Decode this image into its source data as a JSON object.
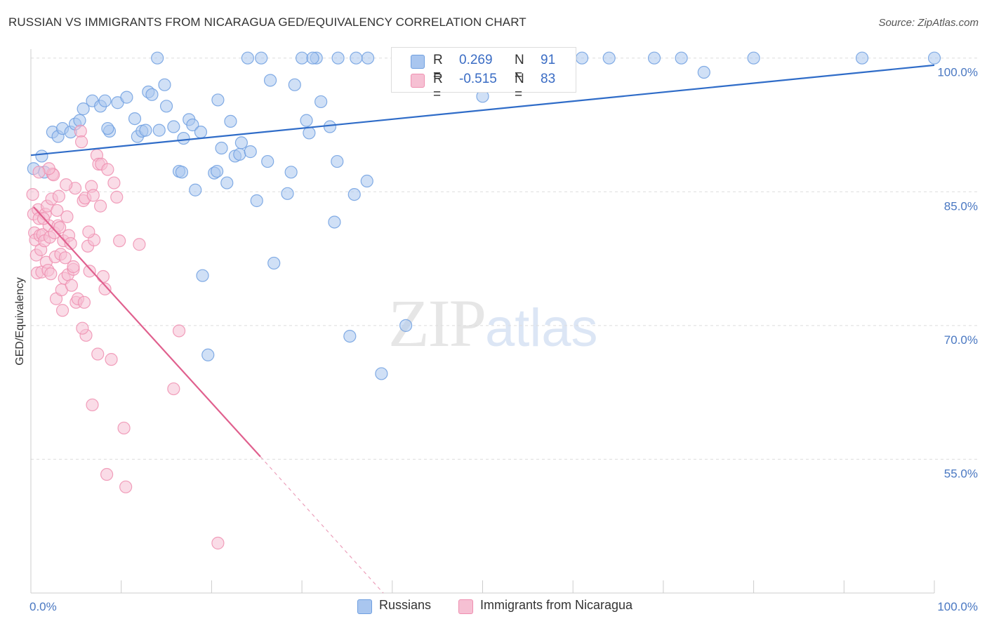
{
  "header": {
    "title": "RUSSIAN VS IMMIGRANTS FROM NICARAGUA GED/EQUIVALENCY CORRELATION CHART",
    "source": "Source: ZipAtlas.com"
  },
  "watermark": {
    "zip": "ZIP",
    "atlas": "atlas"
  },
  "colors": {
    "russians": "#6f9fe0",
    "russians_fill": "#a9c6ef",
    "russians_line": "#2f6cc8",
    "nicaragua": "#ef8fb0",
    "nicaragua_fill": "#f6c0d3",
    "nicaragua_line": "#e0608e",
    "tick_label": "#4a78c2",
    "grid": "#dddddd"
  },
  "legend_top": {
    "rows": [
      {
        "r_label": "R =",
        "r_value": "0.269",
        "n_label": "N =",
        "n_value": "91"
      },
      {
        "r_label": "R =",
        "r_value": "-0.515",
        "n_label": "N =",
        "n_value": "83"
      }
    ]
  },
  "legend_bottom": {
    "items": [
      "Russians",
      "Immigrants from Nicaragua"
    ]
  },
  "chart_data": {
    "type": "scatter",
    "title": "RUSSIAN VS IMMIGRANTS FROM NICARAGUA GED/EQUIVALENCY CORRELATION CHART",
    "xlabel": "",
    "ylabel": "GED/Equivalency",
    "xlim": [
      0,
      100
    ],
    "ylim": [
      40,
      101
    ],
    "x_tick_labels": [
      "0.0%",
      "100.0%"
    ],
    "y_ticks": [
      100,
      85,
      70,
      55
    ],
    "y_tick_labels": [
      "100.0%",
      "85.0%",
      "70.0%",
      "55.0%"
    ],
    "grid": "horizontal dashed",
    "legend_position": "bottom",
    "series": [
      {
        "name": "Russians",
        "r": 0.269,
        "n": 91,
        "trend": {
          "x": [
            0,
            100
          ],
          "y": [
            89.1,
            99.2
          ]
        },
        "points": [
          [
            0.3,
            87.6
          ],
          [
            1.2,
            89.0
          ],
          [
            1.5,
            87.2
          ],
          [
            2.4,
            91.7
          ],
          [
            3.0,
            91.2
          ],
          [
            3.5,
            92.1
          ],
          [
            4.4,
            91.7
          ],
          [
            4.9,
            92.6
          ],
          [
            5.4,
            93.0
          ],
          [
            5.8,
            94.3
          ],
          [
            6.8,
            95.2
          ],
          [
            7.7,
            94.6
          ],
          [
            8.2,
            95.2
          ],
          [
            8.7,
            91.8
          ],
          [
            8.5,
            92.1
          ],
          [
            9.6,
            95.0
          ],
          [
            10.6,
            95.6
          ],
          [
            11.5,
            93.2
          ],
          [
            11.8,
            91.2
          ],
          [
            12.3,
            91.8
          ],
          [
            12.7,
            91.9
          ],
          [
            13.0,
            96.2
          ],
          [
            13.4,
            95.9
          ],
          [
            14.2,
            91.9
          ],
          [
            14.8,
            97.0
          ],
          [
            15.0,
            94.6
          ],
          [
            15.8,
            92.3
          ],
          [
            16.4,
            87.3
          ],
          [
            16.7,
            87.2
          ],
          [
            16.9,
            91.0
          ],
          [
            17.5,
            93.1
          ],
          [
            17.9,
            92.5
          ],
          [
            18.2,
            85.2
          ],
          [
            18.8,
            91.7
          ],
          [
            19.0,
            75.6
          ],
          [
            19.6,
            66.7
          ],
          [
            20.3,
            87.1
          ],
          [
            20.6,
            87.3
          ],
          [
            20.7,
            95.3
          ],
          [
            21.1,
            89.9
          ],
          [
            21.7,
            86.0
          ],
          [
            22.1,
            92.9
          ],
          [
            22.6,
            89.0
          ],
          [
            23.1,
            89.2
          ],
          [
            23.3,
            90.5
          ],
          [
            24.3,
            89.5
          ],
          [
            25.0,
            84.0
          ],
          [
            26.2,
            88.4
          ],
          [
            26.5,
            97.5
          ],
          [
            26.9,
            77.0
          ],
          [
            28.4,
            84.8
          ],
          [
            28.8,
            87.2
          ],
          [
            29.2,
            97.0
          ],
          [
            30.5,
            93.0
          ],
          [
            30.8,
            91.6
          ],
          [
            31.6,
            100.0
          ],
          [
            32.1,
            95.1
          ],
          [
            33.1,
            92.3
          ],
          [
            33.6,
            81.6
          ],
          [
            33.9,
            88.4
          ],
          [
            35.3,
            68.8
          ],
          [
            35.8,
            84.7
          ],
          [
            37.2,
            86.2
          ],
          [
            37.3,
            100.0
          ],
          [
            38.8,
            64.6
          ],
          [
            41.0,
            100.0
          ],
          [
            41.5,
            70.0
          ],
          [
            44.0,
            100.0
          ],
          [
            47.0,
            100.0
          ],
          [
            50.0,
            95.7
          ],
          [
            50.8,
            100.0
          ],
          [
            55.0,
            100.0
          ],
          [
            59.0,
            100.0
          ],
          [
            61.0,
            100.0
          ],
          [
            64.0,
            100.0
          ],
          [
            69.0,
            100.0
          ],
          [
            72.0,
            100.0
          ],
          [
            74.5,
            98.4
          ],
          [
            80.0,
            100.0
          ],
          [
            92.0,
            100.0
          ],
          [
            100.0,
            100.0
          ],
          [
            14.0,
            100.0
          ],
          [
            24.0,
            100.0
          ],
          [
            25.5,
            100.0
          ],
          [
            30.0,
            100.0
          ],
          [
            31.2,
            100.0
          ],
          [
            34.0,
            100.0
          ],
          [
            36.0,
            100.0
          ],
          [
            44.5,
            100.0
          ],
          [
            48.5,
            100.0
          ],
          [
            57.0,
            100.0
          ]
        ]
      },
      {
        "name": "Immigrants from Nicaragua",
        "r": -0.515,
        "n": 83,
        "trend": {
          "x": [
            0.3,
            25.4,
            39.0
          ],
          "y": [
            83.3,
            55.3,
            40.0
          ],
          "solid_until_x": 25.4
        },
        "points": [
          [
            0.2,
            84.7
          ],
          [
            0.3,
            82.5
          ],
          [
            0.4,
            80.4
          ],
          [
            0.5,
            79.6
          ],
          [
            0.6,
            77.9
          ],
          [
            0.7,
            75.9
          ],
          [
            0.8,
            83.0
          ],
          [
            0.9,
            82.0
          ],
          [
            1.0,
            80.1
          ],
          [
            1.1,
            78.5
          ],
          [
            1.2,
            76.0
          ],
          [
            1.3,
            80.2
          ],
          [
            1.5,
            79.5
          ],
          [
            1.6,
            82.5
          ],
          [
            1.7,
            77.1
          ],
          [
            1.8,
            83.4
          ],
          [
            1.9,
            76.2
          ],
          [
            2.0,
            81.2
          ],
          [
            2.1,
            79.9
          ],
          [
            2.2,
            75.8
          ],
          [
            2.3,
            84.2
          ],
          [
            2.4,
            87.0
          ],
          [
            2.5,
            86.9
          ],
          [
            2.6,
            80.4
          ],
          [
            2.7,
            77.7
          ],
          [
            2.8,
            73.0
          ],
          [
            2.9,
            82.9
          ],
          [
            3.0,
            81.2
          ],
          [
            3.1,
            84.5
          ],
          [
            3.3,
            78.0
          ],
          [
            3.4,
            74.0
          ],
          [
            3.5,
            71.7
          ],
          [
            3.6,
            79.5
          ],
          [
            3.7,
            75.3
          ],
          [
            3.8,
            77.6
          ],
          [
            4.0,
            82.2
          ],
          [
            4.1,
            75.7
          ],
          [
            4.2,
            80.1
          ],
          [
            4.5,
            74.5
          ],
          [
            4.7,
            76.3
          ],
          [
            4.9,
            85.4
          ],
          [
            5.0,
            72.6
          ],
          [
            5.2,
            73.0
          ],
          [
            5.5,
            91.8
          ],
          [
            5.6,
            90.6
          ],
          [
            5.8,
            84.0
          ],
          [
            6.0,
            84.3
          ],
          [
            6.1,
            68.9
          ],
          [
            6.3,
            78.9
          ],
          [
            6.5,
            76.1
          ],
          [
            6.7,
            85.6
          ],
          [
            6.9,
            84.6
          ],
          [
            7.0,
            79.6
          ],
          [
            7.3,
            89.1
          ],
          [
            7.5,
            88.1
          ],
          [
            7.8,
            88.1
          ],
          [
            8.0,
            75.5
          ],
          [
            8.2,
            74.1
          ],
          [
            8.5,
            87.5
          ],
          [
            8.9,
            66.2
          ],
          [
            9.2,
            86.0
          ],
          [
            9.5,
            84.4
          ],
          [
            9.8,
            79.5
          ],
          [
            10.3,
            58.5
          ],
          [
            10.5,
            51.9
          ],
          [
            12.0,
            79.1
          ],
          [
            15.8,
            62.9
          ],
          [
            16.4,
            69.4
          ],
          [
            20.7,
            45.6
          ],
          [
            4.7,
            76.6
          ],
          [
            5.9,
            72.6
          ],
          [
            6.8,
            61.1
          ],
          [
            7.4,
            66.8
          ],
          [
            8.4,
            53.3
          ],
          [
            3.2,
            81.0
          ],
          [
            4.4,
            79.2
          ],
          [
            5.7,
            69.7
          ],
          [
            1.4,
            82.0
          ],
          [
            2.0,
            87.6
          ],
          [
            3.9,
            85.8
          ],
          [
            6.4,
            80.5
          ],
          [
            7.7,
            83.4
          ],
          [
            0.9,
            87.2
          ]
        ]
      }
    ]
  }
}
